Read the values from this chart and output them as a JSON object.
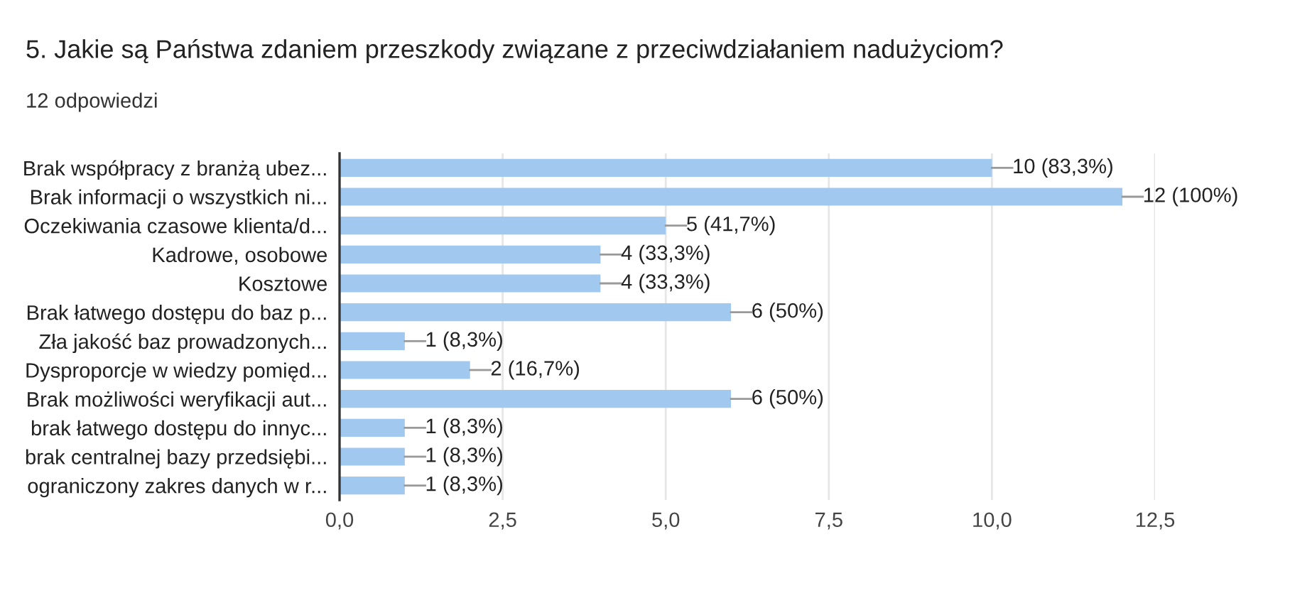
{
  "chart_data": {
    "type": "bar",
    "orientation": "horizontal",
    "title": "5. Jakie są Państwa zdaniem przeszkody związane z przeciwdziałaniem nadużyciom?",
    "subtitle": "12 odpowiedzi",
    "categories": [
      "Brak współpracy z branżą ubez...",
      "Brak informacji o wszystkich ni...",
      "Oczekiwania czasowe klienta/d...",
      "Kadrowe, osobowe",
      "Kosztowe",
      "Brak łatwego dostępu do baz p...",
      "Zła jakość baz prowadzonych...",
      "Dysproporcje w wiedzy pomięd...",
      "Brak możliwości weryfikacji aut...",
      "brak łatwego dostępu do innyc...",
      "brak centralnej bazy przedsiębi...",
      "ograniczony zakres danych w r..."
    ],
    "values": [
      10,
      12,
      5,
      4,
      4,
      6,
      1,
      2,
      6,
      1,
      1,
      1
    ],
    "value_labels": [
      "10 (83,3%)",
      "12 (100%)",
      "5 (41,7%)",
      "4 (33,3%)",
      "4 (33,3%)",
      "6 (50%)",
      "1 (8,3%)",
      "2 (16,7%)",
      "6 (50%)",
      "1 (8,3%)",
      "1 (8,3%)",
      "1 (8,3%)"
    ],
    "color": "#a1c8ef",
    "xlim": [
      0,
      12.5
    ],
    "xticks": [
      {
        "value": 0,
        "label": "0,0"
      },
      {
        "value": 2.5,
        "label": "2,5"
      },
      {
        "value": 5,
        "label": "5,0"
      },
      {
        "value": 7.5,
        "label": "7,5"
      },
      {
        "value": 10,
        "label": "10,0"
      },
      {
        "value": 12.5,
        "label": "12,5"
      }
    ],
    "grid": "x"
  }
}
